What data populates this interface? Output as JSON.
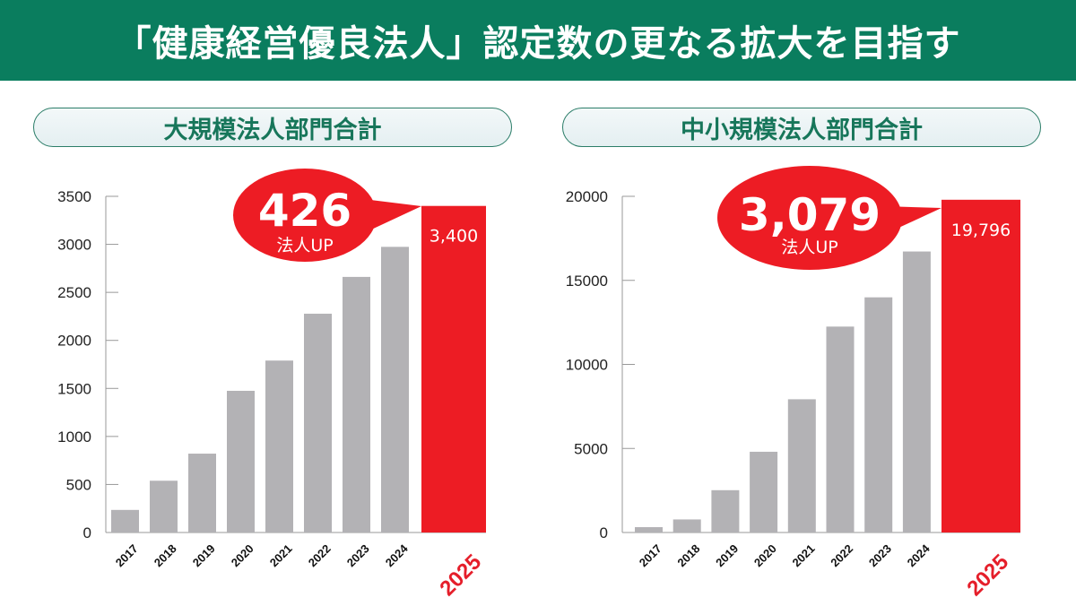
{
  "header": {
    "title": "「健康経営優良法人」認定数の更なる拡大を目指す"
  },
  "colors": {
    "banner": "#0a7d5e",
    "bar": "#b3b2b5",
    "highlight": "#ed1c24",
    "pill_text": "#17765a"
  },
  "chart_data": [
    {
      "type": "bar",
      "title": "大規模法人部門合計",
      "categories": [
        "2017",
        "2018",
        "2019",
        "2020",
        "2021",
        "2022",
        "2023",
        "2024",
        "2025"
      ],
      "values": [
        235,
        539,
        821,
        1475,
        1790,
        2278,
        2661,
        2974,
        3400
      ],
      "highlight_index": 8,
      "highlight_label": "3,400",
      "callout": {
        "number": "426",
        "text": "法人UP"
      },
      "yticks": [
        "0",
        "500",
        "1000",
        "1500",
        "2000",
        "2500",
        "3000",
        "3500"
      ],
      "ylim": [
        0,
        3500
      ],
      "grid": false
    },
    {
      "type": "bar",
      "title": "中小規模法人部門合計",
      "categories": [
        "2017",
        "2018",
        "2019",
        "2020",
        "2021",
        "2022",
        "2023",
        "2024",
        "2025"
      ],
      "values": [
        318,
        776,
        2517,
        4803,
        7926,
        12250,
        13990,
        16717,
        19796
      ],
      "highlight_index": 8,
      "highlight_label": "19,796",
      "callout": {
        "number": "3,079",
        "text": "法人UP"
      },
      "yticks": [
        "0",
        "5000",
        "10000",
        "15000",
        "20000"
      ],
      "ylim": [
        0,
        20000
      ],
      "grid": false
    }
  ]
}
